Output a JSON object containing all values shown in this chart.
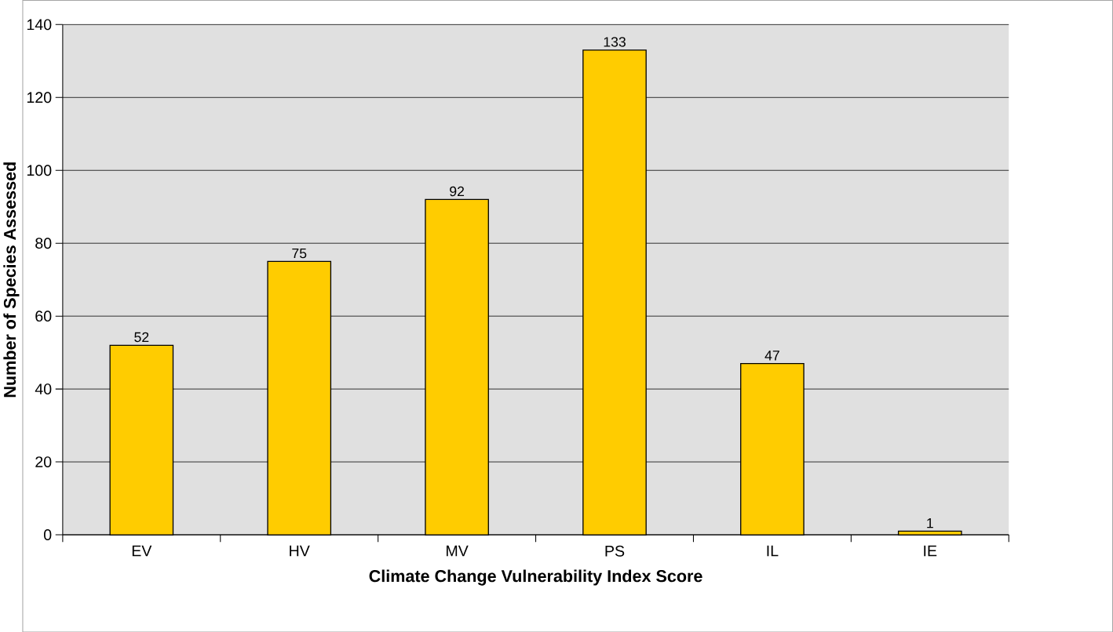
{
  "chart_data": {
    "type": "bar",
    "xlabel": "Climate Change Vulnerability Index Score",
    "ylabel": "Number of Species Assessed",
    "categories": [
      "EV",
      "HV",
      "MV",
      "PS",
      "IL",
      "IE"
    ],
    "values": [
      52,
      75,
      92,
      133,
      47,
      1
    ],
    "color": "#ffcc00",
    "data_labels": true,
    "grid": "y",
    "ylim": [
      0,
      140
    ],
    "yticks": [
      0,
      20,
      40,
      60,
      80,
      100,
      120,
      140
    ]
  }
}
